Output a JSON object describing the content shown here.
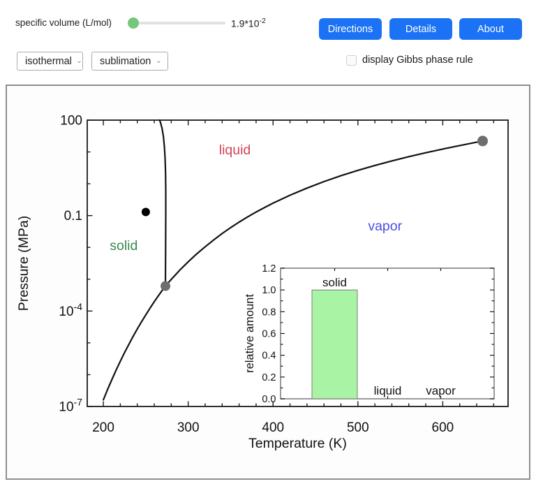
{
  "controls": {
    "slider": {
      "label": "specific volume (L/mol)",
      "value_base": "1.9*10",
      "value_exp": "-2",
      "fraction": 0,
      "handle_color": "#76c77d"
    },
    "buttons": [
      {
        "label": "Directions"
      },
      {
        "label": "Details"
      },
      {
        "label": "About"
      }
    ],
    "button_color": "#1b72f4",
    "dropdowns": [
      {
        "value": "isothermal"
      },
      {
        "value": "sublimation"
      }
    ],
    "checkbox": {
      "label": "display Gibbs phase rule",
      "checked": false
    }
  },
  "icons": {
    "chevron": "⌄"
  },
  "chart_data": [
    {
      "type": "line",
      "name": "phase-diagram",
      "xlabel": "Temperature (K)",
      "ylabel": "Pressure (MPa)",
      "xlim": [
        181,
        677
      ],
      "ylog_lim": [
        -7,
        2
      ],
      "x_ticks": [
        200,
        300,
        400,
        500,
        600
      ],
      "x_minor_step": 20,
      "y_major_ticks": [
        {
          "label": "100",
          "log": 2
        },
        {
          "label": "0.1",
          "log": -1
        },
        {
          "base": "10",
          "exp": "-4",
          "log": -4
        },
        {
          "base": "10",
          "exp": "-7",
          "log": -7
        }
      ],
      "curve_color": "#111111",
      "region_labels": [
        {
          "text": "solid",
          "color": "#398a4b",
          "T": 224,
          "logP": -1.93
        },
        {
          "text": "liquid",
          "color": "#d34357",
          "T": 355,
          "logP": 1.08
        },
        {
          "text": "vapor",
          "color": "#4d4de8",
          "T": 532,
          "logP": -1.31
        }
      ],
      "series": [
        {
          "name": "sublimation-curve",
          "points": [
            [
              200,
              1.62e-07
            ],
            [
              205,
              3.45e-07
            ],
            [
              210,
              7.01e-07
            ],
            [
              215,
              1.38e-06
            ],
            [
              220,
              2.65e-06
            ],
            [
              225,
              4.94e-06
            ],
            [
              230,
              8.95e-06
            ],
            [
              235,
              1.58e-05
            ],
            [
              240,
              2.73e-05
            ],
            [
              245,
              4.6e-05
            ],
            [
              250,
              7.59e-05
            ],
            [
              255,
              0.000123
            ],
            [
              260,
              0.000196
            ],
            [
              265,
              0.000306
            ],
            [
              270,
              0.00047
            ],
            [
              273.16,
              0.000611
            ]
          ]
        },
        {
          "name": "melting-curve",
          "points": [
            [
              273.16,
              0.000611
            ],
            [
              273.4,
              0.01
            ],
            [
              273.5,
              0.1
            ],
            [
              273.5,
              0.6
            ],
            [
              273.3,
              2.2
            ],
            [
              272.8,
              6
            ],
            [
              272.0,
              14
            ],
            [
              270.8,
              30
            ],
            [
              269.2,
              55
            ],
            [
              267.3,
              85
            ],
            [
              266.2,
              100
            ]
          ]
        },
        {
          "name": "vaporization-curve",
          "points": [
            [
              273.16,
              0.000611
            ],
            [
              280,
              0.00099
            ],
            [
              290,
              0.00192
            ],
            [
              300,
              0.00354
            ],
            [
              310,
              0.00623
            ],
            [
              320,
              0.0105
            ],
            [
              330,
              0.0171
            ],
            [
              340,
              0.0272
            ],
            [
              350,
              0.0419
            ],
            [
              360,
              0.0625
            ],
            [
              370,
              0.0905
            ],
            [
              380,
              0.129
            ],
            [
              390,
              0.179
            ],
            [
              400,
              0.246
            ],
            [
              420,
              0.437
            ],
            [
              440,
              0.733
            ],
            [
              460,
              1.171
            ],
            [
              480,
              1.79
            ],
            [
              500,
              2.639
            ],
            [
              520,
              3.769
            ],
            [
              540,
              5.237
            ],
            [
              560,
              7.106
            ],
            [
              580,
              9.448
            ],
            [
              600,
              12.345
            ],
            [
              620,
              15.901
            ],
            [
              640,
              20.265
            ],
            [
              647,
              22.064
            ]
          ]
        }
      ],
      "markers": [
        {
          "name": "triple-point",
          "T": 273.16,
          "P": 0.000611,
          "r": 7,
          "color": "#6e6e6e",
          "interactable": false
        },
        {
          "name": "critical-point",
          "T": 647,
          "P": 22.06,
          "r": 7.5,
          "color": "#6e6e6e",
          "interactable": false
        },
        {
          "name": "state-point",
          "T": 250,
          "P": 0.13,
          "r": 6,
          "color": "#000000",
          "interactable": true
        }
      ]
    },
    {
      "type": "bar",
      "name": "relative-amount-inset",
      "ylabel": "relative amount",
      "categories": [
        "solid",
        "liquid",
        "vapor"
      ],
      "values": [
        1,
        0,
        0
      ],
      "ylim": [
        0,
        1.2
      ],
      "y_tick_step": 0.2,
      "y_minor_step": 0.1,
      "bar_fill": "#a9f3a4",
      "bar_stroke": "#7d7d7d"
    }
  ]
}
